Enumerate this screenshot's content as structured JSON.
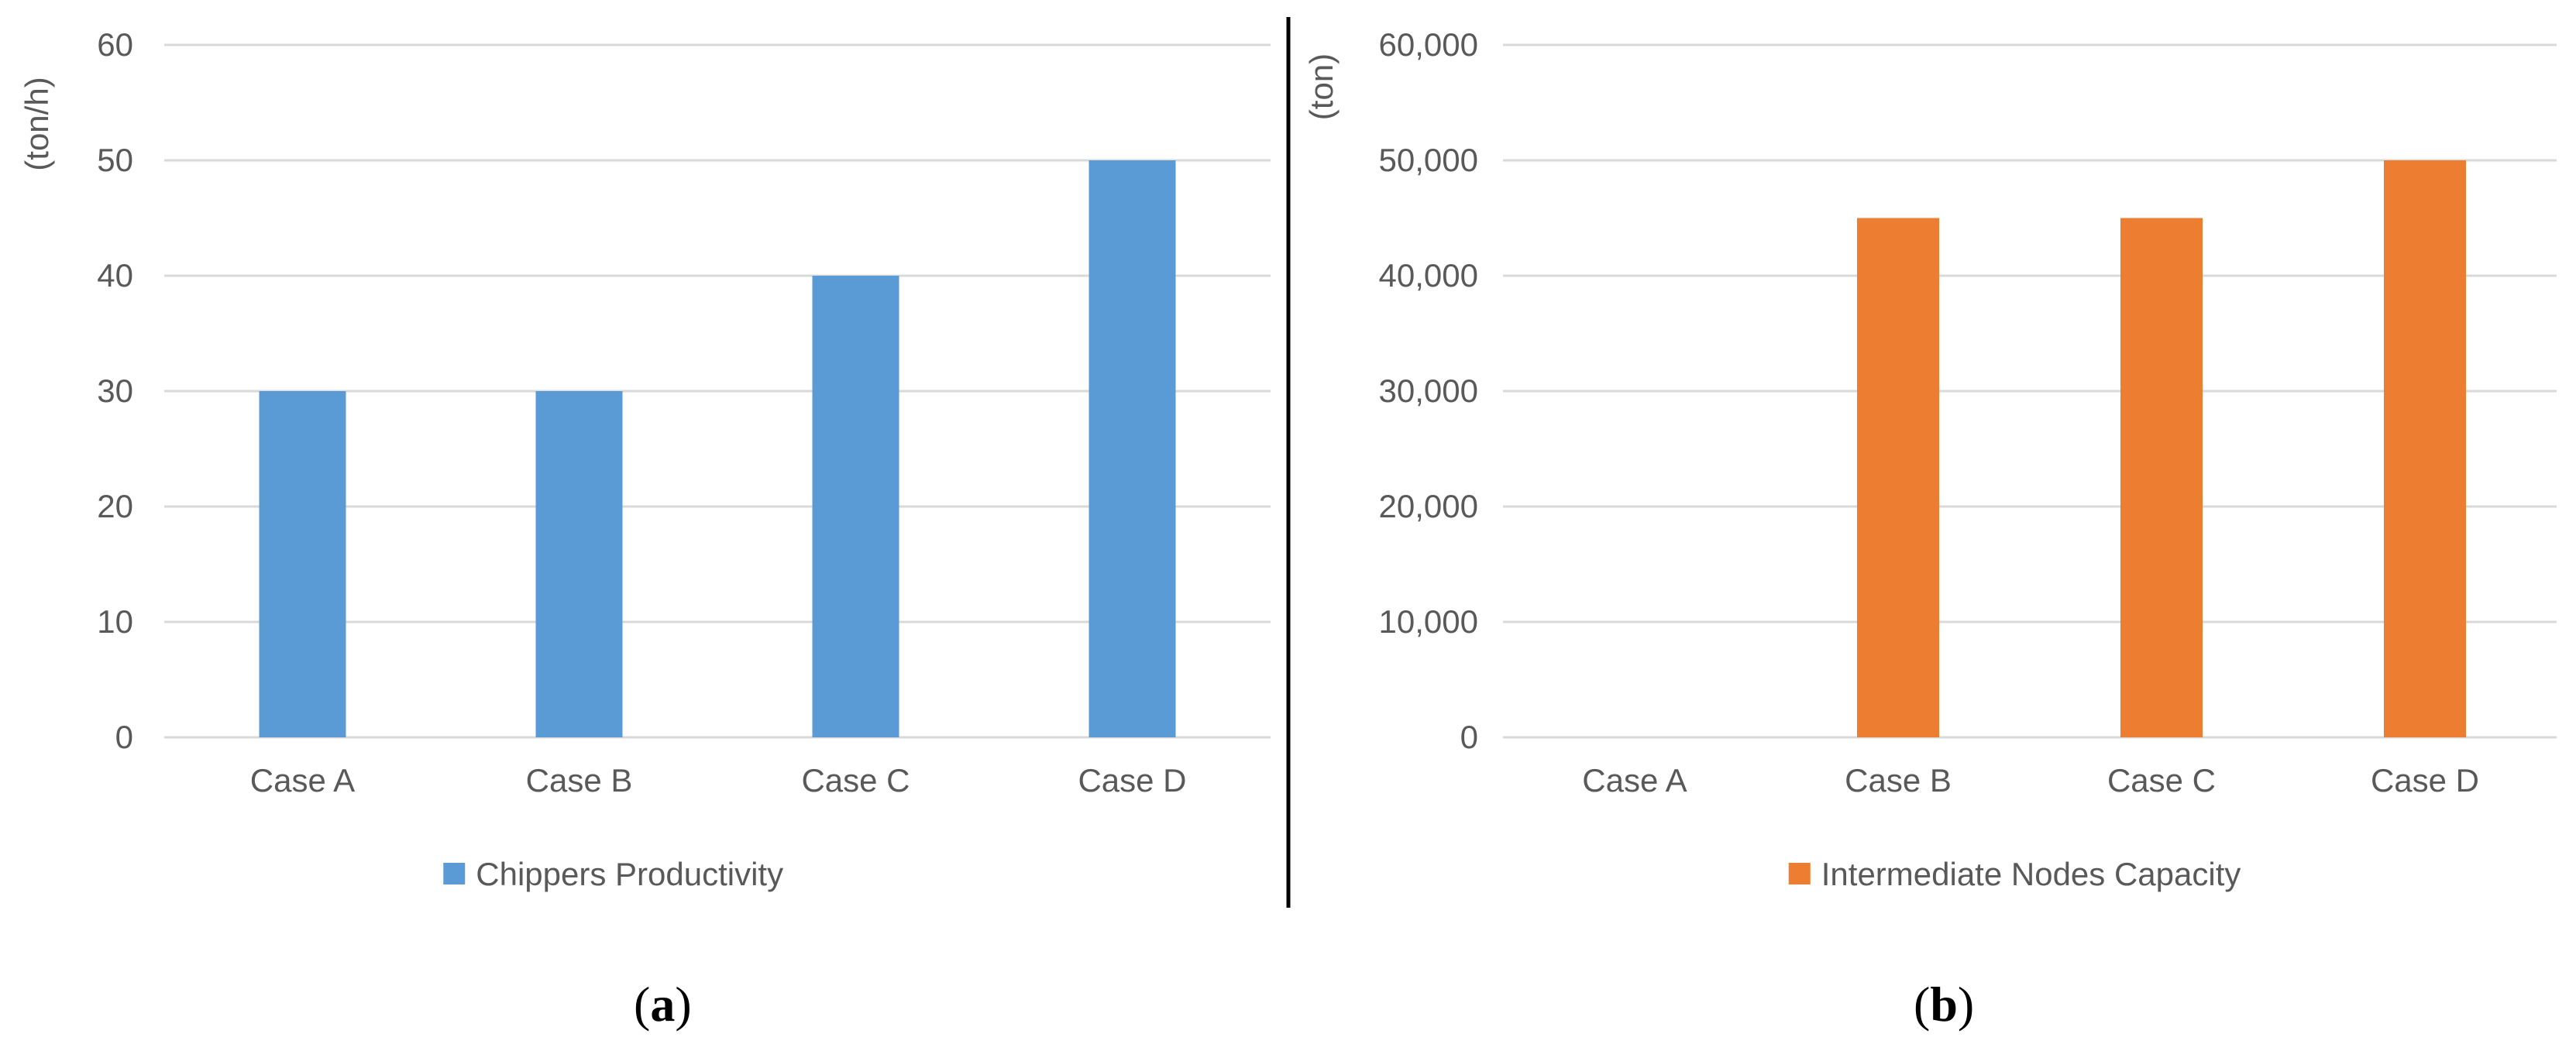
{
  "colors": {
    "series_a": "#5B9BD5",
    "series_b": "#ED7D31",
    "grid": "#D9D9D9",
    "text": "#595959",
    "divider": "#000000"
  },
  "chart_data": [
    {
      "type": "bar",
      "panel_label": "a",
      "unit_label": "(ton/h)",
      "categories": [
        "Case A",
        "Case B",
        "Case C",
        "Case D"
      ],
      "series": [
        {
          "name": "Chippers Productivity",
          "values": [
            30,
            30,
            40,
            50
          ]
        }
      ],
      "ylim": [
        0,
        60
      ],
      "yticks": [
        0,
        10,
        20,
        30,
        40,
        50,
        60
      ],
      "ytick_labels": [
        "0",
        "10",
        "20",
        "30",
        "40",
        "50",
        "60"
      ],
      "grid": true,
      "legend_position": "bottom"
    },
    {
      "type": "bar",
      "panel_label": "b",
      "unit_label": "(ton)",
      "categories": [
        "Case A",
        "Case B",
        "Case C",
        "Case D"
      ],
      "series": [
        {
          "name": "Intermediate Nodes Capacity",
          "values": [
            0,
            45000,
            45000,
            50000
          ]
        }
      ],
      "ylim": [
        0,
        60000
      ],
      "yticks": [
        0,
        10000,
        20000,
        30000,
        40000,
        50000,
        60000
      ],
      "ytick_labels": [
        "0",
        "10,000",
        "20,000",
        "30,000",
        "40,000",
        "50,000",
        "60,000"
      ],
      "grid": true,
      "legend_position": "bottom"
    }
  ]
}
